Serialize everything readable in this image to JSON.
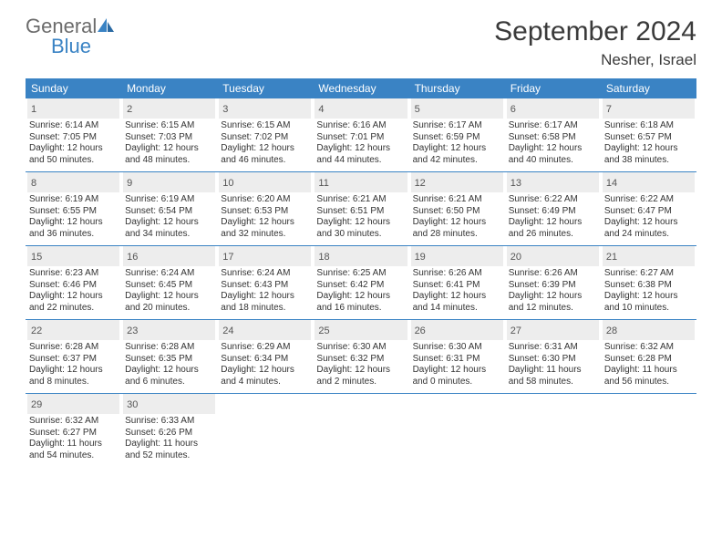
{
  "logo": {
    "text1": "General",
    "text2": "Blue"
  },
  "title": "September 2024",
  "location": "Nesher, Israel",
  "colors": {
    "header_bg": "#3a83c4",
    "daynum_bg": "#ededed",
    "text": "#333333",
    "rule": "#3a83c4"
  },
  "dow": [
    "Sunday",
    "Monday",
    "Tuesday",
    "Wednesday",
    "Thursday",
    "Friday",
    "Saturday"
  ],
  "days": [
    {
      "n": "1",
      "sr": "6:14 AM",
      "ss": "7:05 PM",
      "dl": "12 hours and 50 minutes."
    },
    {
      "n": "2",
      "sr": "6:15 AM",
      "ss": "7:03 PM",
      "dl": "12 hours and 48 minutes."
    },
    {
      "n": "3",
      "sr": "6:15 AM",
      "ss": "7:02 PM",
      "dl": "12 hours and 46 minutes."
    },
    {
      "n": "4",
      "sr": "6:16 AM",
      "ss": "7:01 PM",
      "dl": "12 hours and 44 minutes."
    },
    {
      "n": "5",
      "sr": "6:17 AM",
      "ss": "6:59 PM",
      "dl": "12 hours and 42 minutes."
    },
    {
      "n": "6",
      "sr": "6:17 AM",
      "ss": "6:58 PM",
      "dl": "12 hours and 40 minutes."
    },
    {
      "n": "7",
      "sr": "6:18 AM",
      "ss": "6:57 PM",
      "dl": "12 hours and 38 minutes."
    },
    {
      "n": "8",
      "sr": "6:19 AM",
      "ss": "6:55 PM",
      "dl": "12 hours and 36 minutes."
    },
    {
      "n": "9",
      "sr": "6:19 AM",
      "ss": "6:54 PM",
      "dl": "12 hours and 34 minutes."
    },
    {
      "n": "10",
      "sr": "6:20 AM",
      "ss": "6:53 PM",
      "dl": "12 hours and 32 minutes."
    },
    {
      "n": "11",
      "sr": "6:21 AM",
      "ss": "6:51 PM",
      "dl": "12 hours and 30 minutes."
    },
    {
      "n": "12",
      "sr": "6:21 AM",
      "ss": "6:50 PM",
      "dl": "12 hours and 28 minutes."
    },
    {
      "n": "13",
      "sr": "6:22 AM",
      "ss": "6:49 PM",
      "dl": "12 hours and 26 minutes."
    },
    {
      "n": "14",
      "sr": "6:22 AM",
      "ss": "6:47 PM",
      "dl": "12 hours and 24 minutes."
    },
    {
      "n": "15",
      "sr": "6:23 AM",
      "ss": "6:46 PM",
      "dl": "12 hours and 22 minutes."
    },
    {
      "n": "16",
      "sr": "6:24 AM",
      "ss": "6:45 PM",
      "dl": "12 hours and 20 minutes."
    },
    {
      "n": "17",
      "sr": "6:24 AM",
      "ss": "6:43 PM",
      "dl": "12 hours and 18 minutes."
    },
    {
      "n": "18",
      "sr": "6:25 AM",
      "ss": "6:42 PM",
      "dl": "12 hours and 16 minutes."
    },
    {
      "n": "19",
      "sr": "6:26 AM",
      "ss": "6:41 PM",
      "dl": "12 hours and 14 minutes."
    },
    {
      "n": "20",
      "sr": "6:26 AM",
      "ss": "6:39 PM",
      "dl": "12 hours and 12 minutes."
    },
    {
      "n": "21",
      "sr": "6:27 AM",
      "ss": "6:38 PM",
      "dl": "12 hours and 10 minutes."
    },
    {
      "n": "22",
      "sr": "6:28 AM",
      "ss": "6:37 PM",
      "dl": "12 hours and 8 minutes."
    },
    {
      "n": "23",
      "sr": "6:28 AM",
      "ss": "6:35 PM",
      "dl": "12 hours and 6 minutes."
    },
    {
      "n": "24",
      "sr": "6:29 AM",
      "ss": "6:34 PM",
      "dl": "12 hours and 4 minutes."
    },
    {
      "n": "25",
      "sr": "6:30 AM",
      "ss": "6:32 PM",
      "dl": "12 hours and 2 minutes."
    },
    {
      "n": "26",
      "sr": "6:30 AM",
      "ss": "6:31 PM",
      "dl": "12 hours and 0 minutes."
    },
    {
      "n": "27",
      "sr": "6:31 AM",
      "ss": "6:30 PM",
      "dl": "11 hours and 58 minutes."
    },
    {
      "n": "28",
      "sr": "6:32 AM",
      "ss": "6:28 PM",
      "dl": "11 hours and 56 minutes."
    },
    {
      "n": "29",
      "sr": "6:32 AM",
      "ss": "6:27 PM",
      "dl": "11 hours and 54 minutes."
    },
    {
      "n": "30",
      "sr": "6:33 AM",
      "ss": "6:26 PM",
      "dl": "11 hours and 52 minutes."
    }
  ],
  "labels": {
    "sunrise": "Sunrise:",
    "sunset": "Sunset:",
    "daylight": "Daylight:"
  },
  "layout": {
    "cols": 7,
    "start_offset": 0,
    "total_cells": 35
  }
}
